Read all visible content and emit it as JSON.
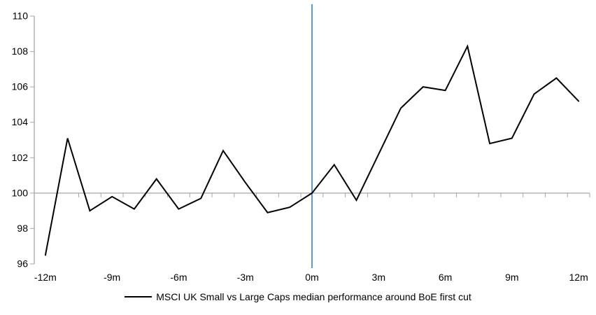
{
  "chart_data": {
    "type": "line",
    "title": "",
    "x": [
      -12,
      -11,
      -10,
      -9,
      -8,
      -7,
      -6,
      -5,
      -4,
      -3,
      -2,
      -1,
      0,
      1,
      2,
      3,
      4,
      5,
      6,
      7,
      8,
      9,
      10,
      11,
      12
    ],
    "x_unit": "months relative to BoE first cut",
    "series": [
      {
        "name": "MSCI UK Small vs Large Caps median performance around BoE first cut",
        "values": [
          96.5,
          103.1,
          99.0,
          99.8,
          99.1,
          100.8,
          99.1,
          99.7,
          102.4,
          100.6,
          98.9,
          99.2,
          100.0,
          101.6,
          99.6,
          102.2,
          104.8,
          106.0,
          105.8,
          108.3,
          102.8,
          103.1,
          105.6,
          106.5,
          105.2
        ]
      }
    ],
    "ylim": [
      96,
      110
    ],
    "ytick_step": 2,
    "y_tick_labels": [
      "110",
      "108",
      "106",
      "104",
      "102",
      "100",
      "98",
      "96"
    ],
    "x_tick_labels": [
      "-12m",
      "-9m",
      "-6m",
      "-3m",
      "0m",
      "3m",
      "6m",
      "9m",
      "12m"
    ],
    "x_tick_label_every": 3,
    "baseline": 100,
    "event_line_x": 0,
    "grid": "baseline-only",
    "legend_position": "bottom",
    "colors": {
      "series": "#000000",
      "axis": "#a6a6a6",
      "baseline": "#a6a6a6",
      "event_line": "#5b9bd5",
      "text": "#000000",
      "background": "#ffffff"
    }
  }
}
